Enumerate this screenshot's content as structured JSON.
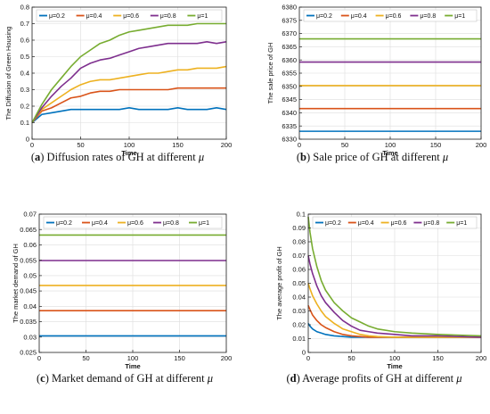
{
  "colors": [
    "#0072BD",
    "#D95319",
    "#EDB120",
    "#7E2F8E",
    "#77AC30"
  ],
  "chart_data": [
    {
      "type": "line",
      "panel": "a",
      "caption": {
        "letter": "a",
        "text": "Diffusion rates of GH at different",
        "symbol": "μ"
      },
      "xlabel": "Time",
      "ylabel": "The Diffusion of Green Housing",
      "xlim": [
        0,
        200
      ],
      "ylim": [
        0,
        0.8
      ],
      "xticks": [
        0,
        50,
        100,
        150,
        200
      ],
      "yticks": [
        0,
        0.1,
        0.2,
        0.3,
        0.4,
        0.5,
        0.6,
        0.7,
        0.8
      ],
      "x": [
        0,
        10,
        20,
        30,
        40,
        50,
        60,
        70,
        80,
        90,
        100,
        110,
        120,
        130,
        140,
        150,
        160,
        170,
        180,
        190,
        200
      ],
      "series": [
        {
          "name": "μ=0.2",
          "values": [
            0.1,
            0.15,
            0.16,
            0.17,
            0.18,
            0.18,
            0.18,
            0.18,
            0.18,
            0.18,
            0.19,
            0.18,
            0.18,
            0.18,
            0.18,
            0.19,
            0.18,
            0.18,
            0.18,
            0.19,
            0.18
          ]
        },
        {
          "name": "μ=0.4",
          "values": [
            0.1,
            0.17,
            0.19,
            0.22,
            0.25,
            0.26,
            0.28,
            0.29,
            0.29,
            0.3,
            0.3,
            0.3,
            0.3,
            0.3,
            0.3,
            0.31,
            0.31,
            0.31,
            0.31,
            0.31,
            0.31
          ]
        },
        {
          "name": "μ=0.6",
          "values": [
            0.1,
            0.18,
            0.22,
            0.26,
            0.3,
            0.33,
            0.35,
            0.36,
            0.36,
            0.37,
            0.38,
            0.39,
            0.4,
            0.4,
            0.41,
            0.42,
            0.42,
            0.43,
            0.43,
            0.43,
            0.44
          ]
        },
        {
          "name": "μ=0.8",
          "values": [
            0.1,
            0.19,
            0.26,
            0.32,
            0.37,
            0.43,
            0.46,
            0.48,
            0.49,
            0.51,
            0.53,
            0.55,
            0.56,
            0.57,
            0.58,
            0.58,
            0.58,
            0.58,
            0.59,
            0.58,
            0.59
          ]
        },
        {
          "name": "μ=1",
          "values": [
            0.1,
            0.21,
            0.3,
            0.37,
            0.44,
            0.5,
            0.54,
            0.58,
            0.6,
            0.63,
            0.65,
            0.66,
            0.67,
            0.68,
            0.69,
            0.69,
            0.69,
            0.7,
            0.7,
            0.7,
            0.7
          ]
        }
      ]
    },
    {
      "type": "line",
      "panel": "b",
      "caption": {
        "letter": "b",
        "text": "Sale price of GH at different",
        "symbol": "μ"
      },
      "xlabel": "Time",
      "ylabel": "The sale price of GH",
      "xlim": [
        0,
        200
      ],
      "ylim": [
        6330,
        6380
      ],
      "xticks": [
        0,
        50,
        100,
        150,
        200
      ],
      "yticks": [
        6330,
        6335,
        6340,
        6345,
        6350,
        6355,
        6360,
        6365,
        6370,
        6375,
        6380
      ],
      "x": [
        0,
        200
      ],
      "series": [
        {
          "name": "μ=0.2",
          "values": [
            6333,
            6333
          ]
        },
        {
          "name": "μ=0.4",
          "values": [
            6341.6,
            6341.6
          ]
        },
        {
          "name": "μ=0.6",
          "values": [
            6350.3,
            6350.3
          ]
        },
        {
          "name": "μ=0.8",
          "values": [
            6359.2,
            6359.2
          ]
        },
        {
          "name": "μ=1",
          "values": [
            6368,
            6368
          ]
        }
      ]
    },
    {
      "type": "line",
      "panel": "c",
      "caption": {
        "letter": "c",
        "text": "Market demand of GH at different",
        "symbol": "μ"
      },
      "xlabel": "Time",
      "ylabel": "The market demand of GH",
      "xlim": [
        0,
        200
      ],
      "ylim": [
        0.025,
        0.07
      ],
      "xticks": [
        0,
        50,
        100,
        150,
        200
      ],
      "yticks": [
        0.025,
        0.03,
        0.035,
        0.04,
        0.045,
        0.05,
        0.055,
        0.06,
        0.065,
        0.07
      ],
      "x": [
        0,
        200
      ],
      "series": [
        {
          "name": "μ=0.2",
          "values": [
            0.0304,
            0.0304
          ]
        },
        {
          "name": "μ=0.4",
          "values": [
            0.0386,
            0.0386
          ]
        },
        {
          "name": "μ=0.6",
          "values": [
            0.0468,
            0.0468
          ]
        },
        {
          "name": "μ=0.8",
          "values": [
            0.0549,
            0.0549
          ]
        },
        {
          "name": "μ=1",
          "values": [
            0.0632,
            0.0632
          ]
        }
      ]
    },
    {
      "type": "line",
      "panel": "d",
      "caption": {
        "letter": "d",
        "text": "Average profits of GH at different",
        "symbol": "μ"
      },
      "xlabel": "Time",
      "ylabel": "The average profit of GH",
      "xlim": [
        0,
        200
      ],
      "ylim": [
        0,
        0.1
      ],
      "xticks": [
        0,
        50,
        100,
        150,
        200
      ],
      "yticks": [
        0,
        0.01,
        0.02,
        0.03,
        0.04,
        0.05,
        0.06,
        0.07,
        0.08,
        0.09,
        0.1
      ],
      "x": [
        0,
        2,
        5,
        10,
        15,
        20,
        30,
        40,
        50,
        60,
        70,
        80,
        100,
        120,
        150,
        200
      ],
      "series": [
        {
          "name": "μ=0.2",
          "values": [
            0.021,
            0.019,
            0.017,
            0.015,
            0.014,
            0.013,
            0.012,
            0.0115,
            0.011,
            0.011,
            0.011,
            0.011,
            0.011,
            0.011,
            0.011,
            0.011
          ]
        },
        {
          "name": "μ=0.4",
          "values": [
            0.034,
            0.031,
            0.027,
            0.023,
            0.02,
            0.018,
            0.015,
            0.013,
            0.012,
            0.0115,
            0.011,
            0.011,
            0.011,
            0.011,
            0.011,
            0.011
          ]
        },
        {
          "name": "μ=0.6",
          "values": [
            0.05,
            0.046,
            0.041,
            0.035,
            0.03,
            0.026,
            0.021,
            0.017,
            0.015,
            0.013,
            0.012,
            0.0115,
            0.011,
            0.011,
            0.011,
            0.011
          ]
        },
        {
          "name": "μ=0.8",
          "values": [
            0.07,
            0.064,
            0.057,
            0.048,
            0.041,
            0.036,
            0.029,
            0.023,
            0.019,
            0.016,
            0.015,
            0.014,
            0.013,
            0.012,
            0.012,
            0.011
          ]
        },
        {
          "name": "μ=1",
          "values": [
            0.098,
            0.087,
            0.075,
            0.062,
            0.052,
            0.045,
            0.036,
            0.03,
            0.025,
            0.022,
            0.019,
            0.017,
            0.015,
            0.014,
            0.013,
            0.012
          ]
        }
      ]
    }
  ]
}
